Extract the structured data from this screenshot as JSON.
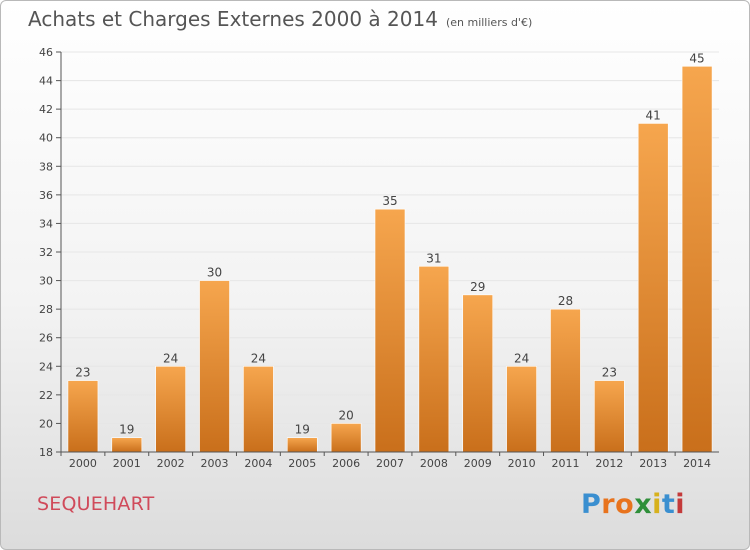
{
  "header": {
    "title": "Achats et Charges Externes 2000 à 2014",
    "unit": "(en milliers d'€)"
  },
  "footer": {
    "commune": "SEQUEHART",
    "logo_letters": [
      "P",
      "r",
      "o",
      "x",
      "i",
      "t",
      "i"
    ],
    "logo_colors": [
      "#3a8fd0",
      "#e8731d",
      "#e8731d",
      "#2f8f3a",
      "#d7b11d",
      "#3a8fd0",
      "#c43a3a"
    ]
  },
  "colors": {
    "bar_top": "#f6a64e",
    "bar_bottom": "#c96f1b",
    "axis": "#555555",
    "grid": "#e6e6e6"
  },
  "chart_data": {
    "type": "bar",
    "categories": [
      "2000",
      "2001",
      "2002",
      "2003",
      "2004",
      "2005",
      "2006",
      "2007",
      "2008",
      "2009",
      "2010",
      "2011",
      "2012",
      "2013",
      "2014"
    ],
    "values": [
      23,
      19,
      24,
      30,
      24,
      19,
      20,
      35,
      31,
      29,
      24,
      28,
      23,
      41,
      45
    ],
    "title": "Achats et Charges Externes 2000 à 2014",
    "unit": "(en milliers d'€)",
    "ylim": [
      18,
      46
    ],
    "yticks": [
      18,
      20,
      22,
      24,
      26,
      28,
      30,
      32,
      34,
      36,
      38,
      40,
      42,
      44,
      46
    ],
    "grid": true,
    "data_labels": true,
    "legend": "none"
  }
}
